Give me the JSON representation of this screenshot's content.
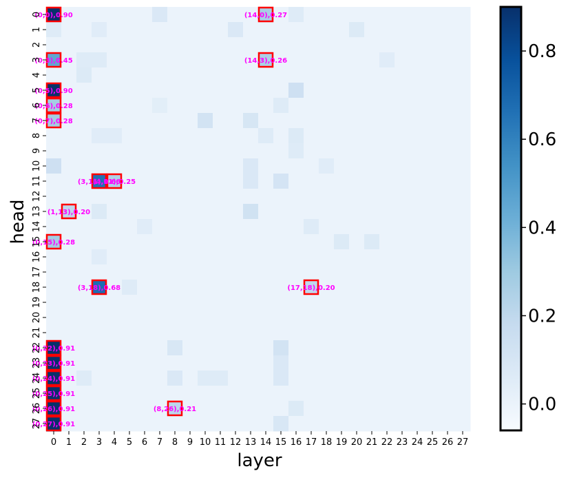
{
  "chart_data": {
    "type": "heatmap",
    "title": "",
    "xlabel": "layer",
    "ylabel": "head",
    "x_categories": [
      "0",
      "1",
      "2",
      "3",
      "4",
      "5",
      "6",
      "7",
      "8",
      "9",
      "10",
      "11",
      "12",
      "13",
      "14",
      "15",
      "16",
      "17",
      "18",
      "19",
      "20",
      "21",
      "22",
      "23",
      "24",
      "25",
      "26",
      "27"
    ],
    "y_categories": [
      "0",
      "1",
      "2",
      "3",
      "4",
      "5",
      "6",
      "7",
      "8",
      "9",
      "10",
      "11",
      "12",
      "13",
      "14",
      "15",
      "16",
      "17",
      "18",
      "19",
      "20",
      "21",
      "22",
      "23",
      "24",
      "25",
      "26",
      "27"
    ],
    "colormap": "Blues",
    "vmin": -0.06,
    "vmax": 0.9,
    "colorbar_ticks": [
      "0.0",
      "0.2",
      "0.4",
      "0.6",
      "0.8"
    ],
    "colorbar_tick_values": [
      0.0,
      0.2,
      0.4,
      0.6,
      0.8
    ],
    "highlight_color": "#ff0000",
    "annotation_color": "#ff00ff",
    "annotations": [
      {
        "layer": 0,
        "head": 0,
        "label": "(0,0),0.90",
        "value": 0.9
      },
      {
        "layer": 14,
        "head": 0,
        "label": "(14,0),0.27",
        "value": 0.27
      },
      {
        "layer": 0,
        "head": 3,
        "label": "(0,3),0.45",
        "value": 0.45
      },
      {
        "layer": 14,
        "head": 3,
        "label": "(14,3),0.26",
        "value": 0.26
      },
      {
        "layer": 0,
        "head": 5,
        "label": "(0,5),0.90",
        "value": 0.9
      },
      {
        "layer": 0,
        "head": 6,
        "label": "(0,6),0.28",
        "value": 0.28
      },
      {
        "layer": 0,
        "head": 7,
        "label": "(0,7),0.28",
        "value": 0.28
      },
      {
        "layer": 3,
        "head": 11,
        "label": "(3,11),0.66",
        "value": 0.66
      },
      {
        "layer": 4,
        "head": 11,
        "label": "(4,11),0.25",
        "value": 0.25
      },
      {
        "layer": 1,
        "head": 13,
        "label": "(1,13),0.20",
        "value": 0.2
      },
      {
        "layer": 0,
        "head": 15,
        "label": "(0,15),0.28",
        "value": 0.28
      },
      {
        "layer": 3,
        "head": 18,
        "label": "(3,18),0.68",
        "value": 0.68
      },
      {
        "layer": 17,
        "head": 18,
        "label": "(17,18),0.20",
        "value": 0.2
      },
      {
        "layer": 0,
        "head": 22,
        "label": "(0,22),0.91",
        "value": 0.91
      },
      {
        "layer": 0,
        "head": 23,
        "label": "(0,23),0.91",
        "value": 0.91
      },
      {
        "layer": 0,
        "head": 24,
        "label": "(0,24),0.91",
        "value": 0.91
      },
      {
        "layer": 0,
        "head": 25,
        "label": "(0,25),0.91",
        "value": 0.91
      },
      {
        "layer": 0,
        "head": 26,
        "label": "(0,26),0.91",
        "value": 0.91
      },
      {
        "layer": 8,
        "head": 26,
        "label": "(8,26),0.21",
        "value": 0.21
      },
      {
        "layer": 0,
        "head": 27,
        "label": "(0,27),0.91",
        "value": 0.91
      }
    ],
    "background_cells": [
      {
        "layer": 7,
        "head": 0,
        "value": 0.08
      },
      {
        "layer": 16,
        "head": 0,
        "value": 0.06
      },
      {
        "layer": 0,
        "head": 1,
        "value": 0.06
      },
      {
        "layer": 3,
        "head": 1,
        "value": 0.05
      },
      {
        "layer": 12,
        "head": 1,
        "value": 0.08
      },
      {
        "layer": 20,
        "head": 1,
        "value": 0.07
      },
      {
        "layer": 2,
        "head": 3,
        "value": 0.06
      },
      {
        "layer": 3,
        "head": 3,
        "value": 0.06
      },
      {
        "layer": 22,
        "head": 3,
        "value": 0.05
      },
      {
        "layer": 2,
        "head": 4,
        "value": 0.07
      },
      {
        "layer": 16,
        "head": 5,
        "value": 0.14
      },
      {
        "layer": 7,
        "head": 6,
        "value": 0.04
      },
      {
        "layer": 15,
        "head": 6,
        "value": 0.06
      },
      {
        "layer": 10,
        "head": 7,
        "value": 0.12
      },
      {
        "layer": 13,
        "head": 7,
        "value": 0.1
      },
      {
        "layer": 3,
        "head": 8,
        "value": 0.05
      },
      {
        "layer": 4,
        "head": 8,
        "value": 0.05
      },
      {
        "layer": 14,
        "head": 8,
        "value": 0.06
      },
      {
        "layer": 16,
        "head": 8,
        "value": 0.07
      },
      {
        "layer": 16,
        "head": 9,
        "value": 0.06
      },
      {
        "layer": 0,
        "head": 10,
        "value": 0.14
      },
      {
        "layer": 13,
        "head": 10,
        "value": 0.08
      },
      {
        "layer": 18,
        "head": 10,
        "value": 0.05
      },
      {
        "layer": 13,
        "head": 11,
        "value": 0.08
      },
      {
        "layer": 15,
        "head": 11,
        "value": 0.11
      },
      {
        "layer": 3,
        "head": 13,
        "value": 0.07
      },
      {
        "layer": 13,
        "head": 13,
        "value": 0.13
      },
      {
        "layer": 6,
        "head": 14,
        "value": 0.05
      },
      {
        "layer": 17,
        "head": 14,
        "value": 0.06
      },
      {
        "layer": 19,
        "head": 15,
        "value": 0.07
      },
      {
        "layer": 21,
        "head": 15,
        "value": 0.07
      },
      {
        "layer": 3,
        "head": 16,
        "value": 0.05
      },
      {
        "layer": 5,
        "head": 18,
        "value": 0.06
      },
      {
        "layer": 8,
        "head": 22,
        "value": 0.09
      },
      {
        "layer": 15,
        "head": 22,
        "value": 0.12
      },
      {
        "layer": 15,
        "head": 23,
        "value": 0.08
      },
      {
        "layer": 2,
        "head": 24,
        "value": 0.06
      },
      {
        "layer": 8,
        "head": 24,
        "value": 0.08
      },
      {
        "layer": 10,
        "head": 24,
        "value": 0.06
      },
      {
        "layer": 11,
        "head": 24,
        "value": 0.06
      },
      {
        "layer": 15,
        "head": 24,
        "value": 0.08
      },
      {
        "layer": 16,
        "head": 26,
        "value": 0.07
      },
      {
        "layer": 15,
        "head": 27,
        "value": 0.09
      }
    ],
    "default_background_value": 0.0
  }
}
